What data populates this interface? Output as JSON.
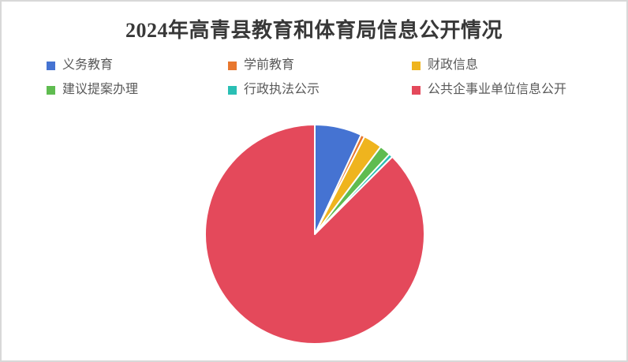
{
  "window": {
    "background_color": "#ffffff",
    "border_color": "#d8d8d8"
  },
  "chart_data": {
    "type": "pie",
    "title": "2024年高青县教育和体育局信息公开情况",
    "title_color": "#383838",
    "legend_position": "top",
    "legend_text_color": "#595959",
    "start_angle_deg": 0,
    "direction": "clockwise",
    "slice_border_color": "#ffffff",
    "slice_border_width": 2,
    "series": [
      {
        "name": "义务教育",
        "color": "#4573D2",
        "percent": 6.94
      },
      {
        "name": "学前教育",
        "color": "#E8772E",
        "percent": 0.56
      },
      {
        "name": "财政信息",
        "color": "#EFB41E",
        "percent": 2.78
      },
      {
        "name": "建议提案办理",
        "color": "#5FBC50",
        "percent": 1.67
      },
      {
        "name": "行政执法公示",
        "color": "#2ABFB4",
        "percent": 0.56
      },
      {
        "name": "公共企事业单位信息公开",
        "color": "#E4495B",
        "percent": 87.49
      }
    ]
  }
}
